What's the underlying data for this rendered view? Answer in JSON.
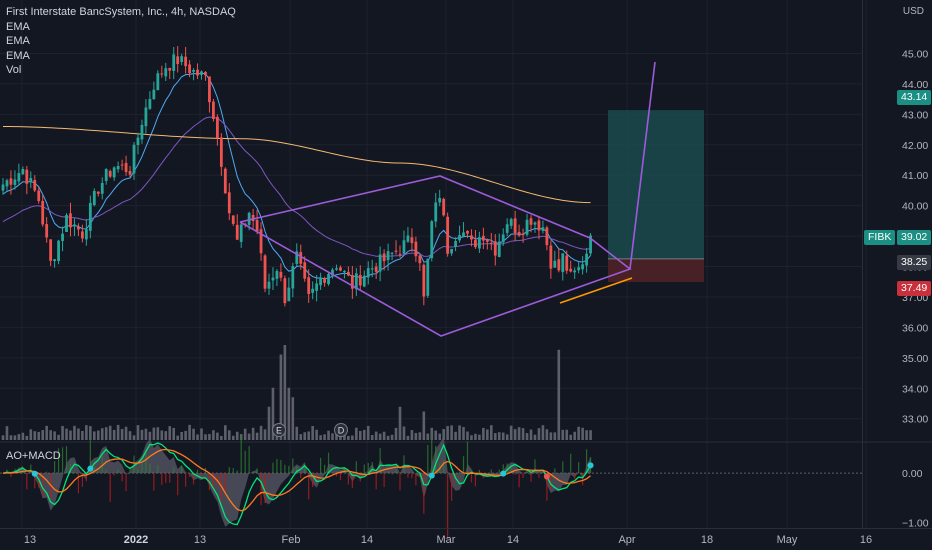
{
  "legend": {
    "title": "First Interstate BancSystem, Inc., 4h, NASDAQ",
    "studies": [
      "EMA",
      "EMA",
      "EMA",
      "Vol"
    ]
  },
  "indicator": {
    "title": "AO+MACD"
  },
  "colors": {
    "background": "#131722",
    "up": "#26a69a",
    "down": "#ef5350",
    "volume": "#5d606b",
    "ema_short": "#4dabf7",
    "ema_mid": "#7e57c2",
    "ema_long": "#f5b971",
    "pattern": "#9c5bd9",
    "orange_line": "#ff9800",
    "target_zone": "#1b4a4c",
    "stop_zone": "#4a2227",
    "macd": "#00e676",
    "signal": "#ff7a21"
  },
  "price_axis": {
    "currency": "USD",
    "ticks": [
      "45.00",
      "44.00",
      "43.00",
      "42.00",
      "41.00",
      "40.00",
      "39.00",
      "38.00",
      "37.00",
      "36.00",
      "35.00",
      "34.00",
      "33.00"
    ],
    "tags": {
      "target": "43.14",
      "ticker": "FIBK",
      "last": "39.02",
      "entry": "38.25",
      "stop": "37.49"
    }
  },
  "indicator_axis": {
    "ticks": [
      "0.00",
      "−1.00"
    ]
  },
  "time_axis": {
    "ticks": [
      "13",
      "2022",
      "13",
      "Feb",
      "14",
      "Mar",
      "14",
      "Apr",
      "18",
      "May",
      "16"
    ]
  },
  "events": [
    "E",
    "D"
  ],
  "chart_data": {
    "type": "candlestick",
    "title": "First Interstate BancSystem, Inc., 4h, NASDAQ",
    "price_range": [
      32.3,
      46.1
    ],
    "indicator_range": [
      -1.15,
      0.55
    ],
    "anchors": [
      {
        "i": 0,
        "p": 40.7
      },
      {
        "i": 5,
        "p": 41.2
      },
      {
        "i": 9,
        "p": 40.2
      },
      {
        "i": 12,
        "p": 38.1
      },
      {
        "i": 16,
        "p": 39.6
      },
      {
        "i": 20,
        "p": 39.1
      },
      {
        "i": 24,
        "p": 40.6
      },
      {
        "i": 28,
        "p": 41.3
      },
      {
        "i": 32,
        "p": 41.2
      },
      {
        "i": 35,
        "p": 42.8
      },
      {
        "i": 38,
        "p": 44.0
      },
      {
        "i": 41,
        "p": 44.6
      },
      {
        "i": 44,
        "p": 44.8
      },
      {
        "i": 48,
        "p": 44.4
      },
      {
        "i": 51,
        "p": 44.2
      },
      {
        "i": 53,
        "p": 43.0
      },
      {
        "i": 55,
        "p": 41.5
      },
      {
        "i": 57,
        "p": 39.8
      },
      {
        "i": 59,
        "p": 38.8
      },
      {
        "i": 62,
        "p": 39.8
      },
      {
        "i": 64,
        "p": 39.2
      },
      {
        "i": 66,
        "p": 37.3
      },
      {
        "i": 69,
        "p": 38.0
      },
      {
        "i": 71,
        "p": 37.0
      },
      {
        "i": 74,
        "p": 38.3
      },
      {
        "i": 77,
        "p": 36.9
      },
      {
        "i": 80,
        "p": 37.6
      },
      {
        "i": 84,
        "p": 38.1
      },
      {
        "i": 88,
        "p": 37.4
      },
      {
        "i": 92,
        "p": 37.9
      },
      {
        "i": 96,
        "p": 38.2
      },
      {
        "i": 100,
        "p": 38.6
      },
      {
        "i": 103,
        "p": 38.9
      },
      {
        "i": 105,
        "p": 38.3
      },
      {
        "i": 106,
        "p": 36.9
      },
      {
        "i": 108,
        "p": 39.4
      },
      {
        "i": 110,
        "p": 40.4
      },
      {
        "i": 112,
        "p": 38.6
      },
      {
        "i": 115,
        "p": 39.3
      },
      {
        "i": 118,
        "p": 38.7
      },
      {
        "i": 121,
        "p": 39.1
      },
      {
        "i": 124,
        "p": 38.6
      },
      {
        "i": 127,
        "p": 39.5
      },
      {
        "i": 130,
        "p": 39.2
      },
      {
        "i": 133,
        "p": 39.6
      },
      {
        "i": 136,
        "p": 39.3
      },
      {
        "i": 138,
        "p": 38.2
      },
      {
        "i": 140,
        "p": 37.9
      },
      {
        "i": 141,
        "p": 38.3
      },
      {
        "i": 143,
        "p": 37.6
      },
      {
        "i": 145,
        "p": 37.9
      },
      {
        "i": 147,
        "p": 38.5
      },
      {
        "i": 148,
        "p": 39.02
      }
    ],
    "volume_spikes": [
      {
        "i": 68,
        "v": 0.55
      },
      {
        "i": 70,
        "v": 0.9
      },
      {
        "i": 71,
        "v": 1.0
      },
      {
        "i": 72,
        "v": 0.55
      },
      {
        "i": 73,
        "v": 0.45
      },
      {
        "i": 67,
        "v": 0.35
      },
      {
        "i": 140,
        "v": 0.95
      },
      {
        "i": 100,
        "v": 0.35
      },
      {
        "i": 106,
        "v": 0.3
      }
    ],
    "targets": {
      "target": 43.14,
      "entry": 38.25,
      "stop": 37.49
    },
    "series": [
      {
        "name": "EMA",
        "period_hint": "short"
      },
      {
        "name": "EMA",
        "period_hint": "mid"
      },
      {
        "name": "EMA",
        "period_hint": "long"
      },
      {
        "name": "Vol"
      }
    ]
  }
}
